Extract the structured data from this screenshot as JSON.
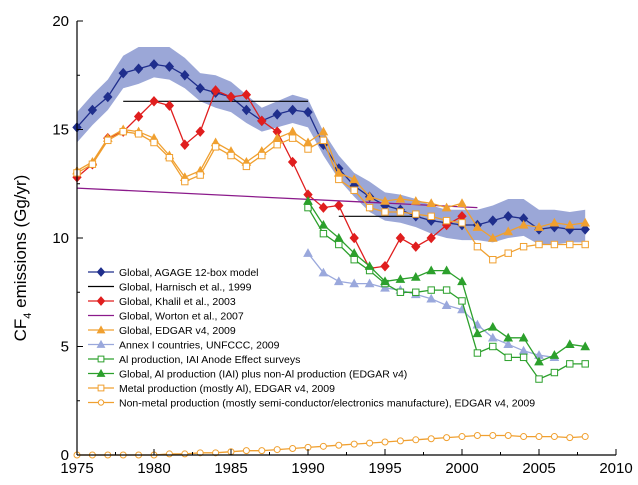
{
  "chart_data": {
    "type": "line",
    "title": "",
    "xlabel": "",
    "ylabel": {
      "main": "CF",
      "sub": "4",
      "rest": " emissions (Gg/yr)"
    },
    "xlim": [
      1975,
      2010
    ],
    "ylim": [
      0,
      20
    ],
    "xticks": [
      1975,
      1980,
      1985,
      1990,
      1995,
      2000,
      2005,
      2010
    ],
    "yticks": [
      0,
      5,
      10,
      15,
      20
    ],
    "legend_position": "bottom-left",
    "band": {
      "color": "#8a98d0",
      "x": [
        1975,
        1976,
        1977,
        1978,
        1979,
        1980,
        1981,
        1982,
        1983,
        1984,
        1985,
        1986,
        1987,
        1988,
        1989,
        1990,
        1991,
        1992,
        1993,
        1994,
        1995,
        1996,
        1997,
        1998,
        1999,
        2000,
        2001,
        2002,
        2003,
        2004,
        2005,
        2006,
        2007,
        2008
      ],
      "lower": [
        14.4,
        15.2,
        15.9,
        16.9,
        17.1,
        17.4,
        17.3,
        16.9,
        16.3,
        16.0,
        15.8,
        15.3,
        14.9,
        15.1,
        15.3,
        15.1,
        13.8,
        12.7,
        11.9,
        11.2,
        10.8,
        10.7,
        10.5,
        10.2,
        10.0,
        9.9,
        9.9,
        9.8,
        10.0,
        10.1,
        9.7,
        9.7,
        9.8,
        9.8
      ],
      "upper": [
        15.8,
        16.6,
        17.3,
        18.4,
        18.8,
        18.8,
        18.8,
        18.3,
        17.6,
        17.5,
        17.2,
        16.6,
        16.0,
        16.3,
        16.6,
        16.4,
        14.9,
        13.8,
        13.0,
        12.6,
        12.1,
        12.0,
        11.8,
        11.5,
        11.3,
        11.3,
        11.3,
        11.5,
        11.8,
        11.8,
        11.3,
        11.3,
        11.2,
        11.3
      ]
    },
    "series": [
      {
        "name": "Global, AGAGE 12-box model",
        "color": "#1f2e8c",
        "marker": "diamond",
        "filled": true,
        "x": [
          1975,
          1976,
          1977,
          1978,
          1979,
          1980,
          1981,
          1982,
          1983,
          1984,
          1985,
          1986,
          1987,
          1988,
          1989,
          1990,
          1991,
          1992,
          1993,
          1994,
          1995,
          1996,
          1997,
          1998,
          1999,
          2000,
          2001,
          2002,
          2003,
          2004,
          2005,
          2006,
          2007,
          2008
        ],
        "y": [
          15.1,
          15.9,
          16.5,
          17.6,
          17.8,
          18.0,
          17.9,
          17.5,
          16.9,
          16.7,
          16.5,
          15.9,
          15.4,
          15.7,
          15.9,
          15.8,
          14.3,
          13.2,
          12.4,
          11.9,
          11.5,
          11.3,
          11.0,
          10.8,
          10.7,
          10.6,
          10.6,
          10.8,
          11.0,
          10.9,
          10.4,
          10.5,
          10.4,
          10.4
        ]
      },
      {
        "name": "Global, Harnisch et al., 1999",
        "color": "#000000",
        "marker": "none",
        "segments": true,
        "x": [
          1978,
          1990,
          1992,
          1997
        ],
        "y": [
          16.3,
          16.3,
          11.0,
          11.0
        ]
      },
      {
        "name": "Global, Khalil et al., 2003",
        "color": "#e01e1e",
        "marker": "diamond",
        "filled": true,
        "x": [
          1975,
          1976,
          1977,
          1978,
          1979,
          1980,
          1981,
          1982,
          1983,
          1984,
          1985,
          1986,
          1987,
          1988,
          1989,
          1990,
          1991,
          1992,
          1993,
          1994,
          1995,
          1996,
          1997,
          1998,
          1999,
          2000
        ],
        "y": [
          12.8,
          13.4,
          14.6,
          14.9,
          15.6,
          16.3,
          16.1,
          14.3,
          14.9,
          16.8,
          16.5,
          16.6,
          15.4,
          14.9,
          13.5,
          12.0,
          11.4,
          11.5,
          10.0,
          8.6,
          8.7,
          10.0,
          9.6,
          10.0,
          10.6,
          11.0
        ]
      },
      {
        "name": "Global, Worton et al., 2007",
        "color": "#8b1a8b",
        "marker": "none",
        "x": [
          1975,
          2001
        ],
        "y": [
          12.3,
          11.4
        ]
      },
      {
        "name": "Global, EDGAR v4, 2009",
        "color": "#f0a030",
        "marker": "triangle",
        "filled": true,
        "x": [
          1975,
          1976,
          1977,
          1978,
          1979,
          1980,
          1981,
          1982,
          1983,
          1984,
          1985,
          1986,
          1987,
          1988,
          1989,
          1990,
          1991,
          1992,
          1993,
          1994,
          1995,
          1996,
          1997,
          1998,
          1999,
          2000,
          2001,
          2002,
          2003,
          2004,
          2005,
          2006,
          2007,
          2008
        ],
        "y": [
          13.1,
          13.5,
          14.6,
          15.0,
          14.9,
          14.6,
          13.8,
          12.8,
          13.1,
          14.4,
          14.0,
          13.5,
          14.0,
          14.6,
          14.9,
          14.4,
          14.9,
          13.0,
          12.7,
          11.9,
          11.7,
          11.8,
          11.7,
          11.6,
          11.4,
          11.6,
          10.5,
          10.0,
          10.3,
          10.6,
          10.5,
          10.7,
          10.6,
          10.7
        ]
      },
      {
        "name": "Annex I countries, UNFCCC, 2009",
        "color": "#9aa8dc",
        "marker": "triangle",
        "filled": true,
        "x": [
          1990,
          1991,
          1992,
          1993,
          1994,
          1995,
          1996,
          1997,
          1998,
          1999,
          2000,
          2001,
          2002,
          2003,
          2004,
          2005,
          2006
        ],
        "y": [
          9.3,
          8.4,
          8.0,
          7.9,
          7.9,
          7.7,
          7.6,
          7.4,
          7.2,
          6.9,
          6.7,
          6.0,
          5.4,
          5.1,
          4.8,
          4.6,
          4.5
        ]
      },
      {
        "name": "Al production, IAI Anode Effect surveys",
        "color": "#2ca02c",
        "marker": "square",
        "filled": false,
        "x": [
          1990,
          1991,
          1992,
          1993,
          1994,
          1995,
          1996,
          1997,
          1998,
          1999,
          2000,
          2001,
          2002,
          2003,
          2004,
          2005,
          2006,
          2007,
          2008
        ],
        "y": [
          11.4,
          10.2,
          9.7,
          9.0,
          8.5,
          7.9,
          7.5,
          7.5,
          7.6,
          7.6,
          7.1,
          4.7,
          5.0,
          4.5,
          4.5,
          3.5,
          3.8,
          4.2,
          4.2
        ]
      },
      {
        "name": "Global, Al production (IAI) plus non-Al production (EDGAR v4)",
        "color": "#2ca02c",
        "marker": "triangle",
        "filled": true,
        "x": [
          1990,
          1991,
          1992,
          1993,
          1994,
          1995,
          1996,
          1997,
          1998,
          1999,
          2000,
          2001,
          2002,
          2003,
          2004,
          2005,
          2006,
          2007,
          2008
        ],
        "y": [
          11.7,
          10.6,
          10.0,
          9.3,
          8.7,
          8.0,
          8.1,
          8.2,
          8.5,
          8.5,
          8.0,
          5.6,
          5.9,
          5.4,
          5.4,
          4.3,
          4.6,
          5.1,
          5.0
        ]
      },
      {
        "name": "Metal production (mostly Al), EDGAR v4, 2009",
        "color": "#f0a030",
        "marker": "square",
        "filled": false,
        "x": [
          1975,
          1976,
          1977,
          1978,
          1979,
          1980,
          1981,
          1982,
          1983,
          1984,
          1985,
          1986,
          1987,
          1988,
          1989,
          1990,
          1991,
          1992,
          1993,
          1994,
          1995,
          1996,
          1997,
          1998,
          1999,
          2000,
          2001,
          2002,
          2003,
          2004,
          2005,
          2006,
          2007,
          2008
        ],
        "y": [
          13.0,
          13.4,
          14.5,
          14.9,
          14.8,
          14.4,
          13.7,
          12.6,
          12.9,
          14.2,
          13.8,
          13.3,
          13.8,
          14.3,
          14.6,
          14.1,
          14.5,
          12.7,
          12.2,
          11.4,
          11.2,
          11.2,
          11.1,
          11.0,
          10.8,
          10.7,
          9.6,
          9.0,
          9.3,
          9.6,
          9.7,
          9.7,
          9.7,
          9.7
        ]
      },
      {
        "name": "Non-metal production (mostly semi-conductor/electronics manufacture), EDGAR v4, 2009",
        "color": "#f0a030",
        "marker": "circle",
        "filled": false,
        "x": [
          1975,
          1976,
          1977,
          1978,
          1979,
          1980,
          1981,
          1982,
          1983,
          1984,
          1985,
          1986,
          1987,
          1988,
          1989,
          1990,
          1991,
          1992,
          1993,
          1994,
          1995,
          1996,
          1997,
          1998,
          1999,
          2000,
          2001,
          2002,
          2003,
          2004,
          2005,
          2006,
          2007,
          2008
        ],
        "y": [
          0.0,
          0.0,
          0.0,
          0.0,
          0.0,
          0.0,
          0.05,
          0.05,
          0.1,
          0.1,
          0.15,
          0.2,
          0.2,
          0.25,
          0.3,
          0.35,
          0.4,
          0.45,
          0.5,
          0.55,
          0.6,
          0.65,
          0.7,
          0.75,
          0.8,
          0.85,
          0.9,
          0.9,
          0.9,
          0.85,
          0.85,
          0.85,
          0.8,
          0.85
        ]
      }
    ]
  }
}
